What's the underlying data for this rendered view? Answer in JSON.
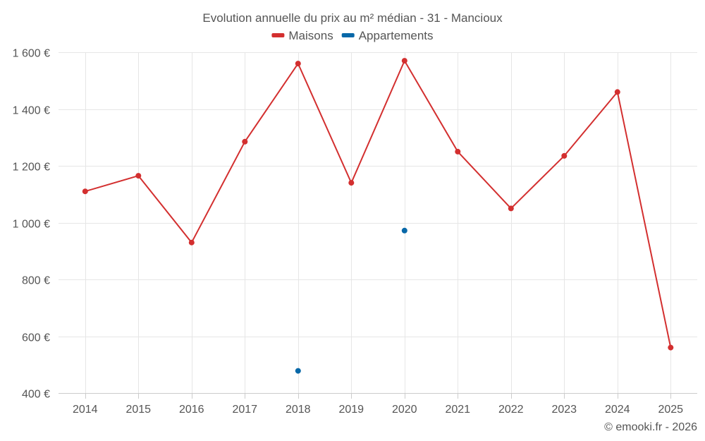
{
  "chart_data": {
    "type": "line",
    "title": "Evolution annuelle du prix au m² médian - 31 - Mancioux",
    "categories": [
      "2014",
      "2015",
      "2016",
      "2017",
      "2018",
      "2019",
      "2020",
      "2021",
      "2022",
      "2023",
      "2024",
      "2025"
    ],
    "yticks": [
      "400 €",
      "600 €",
      "800 €",
      "1 000 €",
      "1 200 €",
      "1 400 €",
      "1 600 €"
    ],
    "ytick_values": [
      400,
      600,
      800,
      1000,
      1200,
      1400,
      1600
    ],
    "ylim": [
      400,
      1600
    ],
    "xlabel": "",
    "ylabel": "",
    "legend_position": "top-center",
    "grid": true,
    "series": [
      {
        "name": "Maisons",
        "color": "#d32f2f",
        "values": [
          1110,
          1165,
          930,
          1285,
          1560,
          1140,
          1570,
          1250,
          1050,
          1235,
          1460,
          560
        ]
      },
      {
        "name": "Appartements",
        "color": "#0868a8",
        "values": [
          null,
          null,
          null,
          null,
          478,
          null,
          972,
          null,
          null,
          null,
          null,
          null
        ]
      }
    ]
  },
  "credit": "© emooki.fr - 2026"
}
